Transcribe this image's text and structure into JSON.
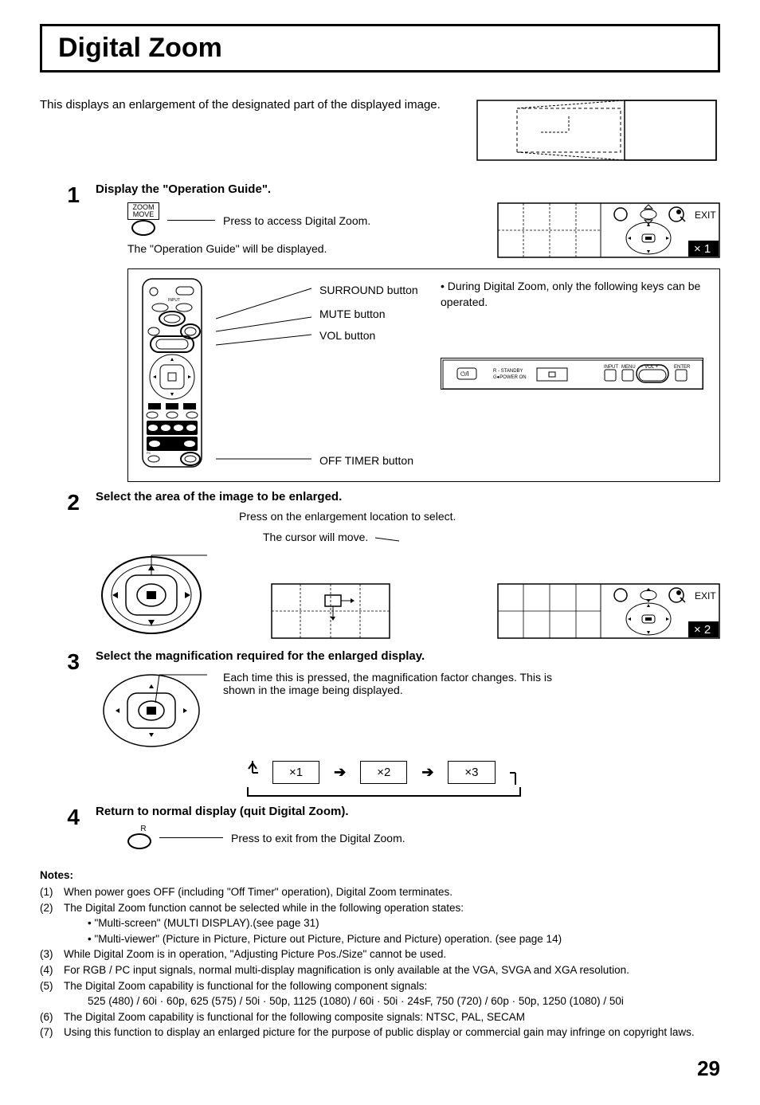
{
  "page": {
    "title": "Digital Zoom",
    "intro": "This displays an enlargement of the designated part of the displayed image.",
    "page_number": "29"
  },
  "steps": {
    "s1": {
      "num": "1",
      "title": "Display the \"Operation Guide\".",
      "zoom_label_line1": "ZOOM",
      "zoom_label_line2": "MOVE",
      "press_text": "Press to access Digital Zoom.",
      "displayed_text": "The \"Operation Guide\" will be displayed.",
      "label_surround": "SURROUND button",
      "label_mute": "MUTE button",
      "label_vol": "VOL button",
      "label_offtimer": "OFF TIMER button",
      "note_text": "During Digital Zoom, only the following keys can be operated.",
      "osd_exit": "EXIT",
      "osd_mag": "× 1",
      "panel_labels": {
        "standby": "R - STANDBY",
        "power": "G●POWER ON",
        "input": "INPUT",
        "menu": "MENU",
        "vol": "−  VOL  +",
        "enter": "ENTER"
      }
    },
    "s2": {
      "num": "2",
      "title": "Select the area of the image to be enlarged.",
      "press_text": "Press on the enlargement location to select.",
      "cursor_text": "The cursor will move.",
      "osd_exit": "EXIT",
      "osd_mag": "× 2"
    },
    "s3": {
      "num": "3",
      "title": "Select the magnification required for the enlarged display.",
      "desc": "Each time this is pressed, the magnification factor changes. This is shown in the image being displayed.",
      "x1": "×1",
      "x2": "×2",
      "x3": "×3"
    },
    "s4": {
      "num": "4",
      "title": "Return to normal display (quit Digital Zoom).",
      "r_label": "R",
      "press_text": "Press to exit from the Digital Zoom."
    }
  },
  "notes": {
    "title": "Notes:",
    "items": [
      {
        "n": "(1)",
        "t": "When power goes OFF (including \"Off Timer\" operation), Digital Zoom terminates."
      },
      {
        "n": "(2)",
        "t": "The Digital Zoom function cannot be selected while in the following operation states:"
      },
      {
        "n": "",
        "t": "• \"Multi-screen\" (MULTI DISPLAY).(see page 31)",
        "sub": true
      },
      {
        "n": "",
        "t": "• \"Multi-viewer\" (Picture in Picture, Picture out Picture, Picture and Picture) operation. (see page 14)",
        "sub": true
      },
      {
        "n": "(3)",
        "t": "While Digital Zoom is in operation, \"Adjusting Picture Pos./Size\" cannot be used."
      },
      {
        "n": "(4)",
        "t": "For RGB / PC input signals, normal multi-display magnification is only available at the VGA, SVGA and XGA resolution."
      },
      {
        "n": "(5)",
        "t": "The Digital Zoom capability is functional for the following component signals:"
      },
      {
        "n": "",
        "t": "525 (480) / 60i · 60p, 625 (575) / 50i · 50p, 1125 (1080) / 60i · 50i · 24sF, 750 (720) / 60p · 50p, 1250 (1080) / 50i",
        "sub": true
      },
      {
        "n": "(6)",
        "t": "The Digital Zoom capability is functional for the following composite signals: NTSC, PAL, SECAM"
      },
      {
        "n": "(7)",
        "t": "Using this function to display an enlarged picture for the purpose of public display or commercial gain may infringe on copyright laws."
      }
    ]
  },
  "colors": {
    "bg": "#ffffff",
    "fg": "#000000",
    "osd_black": "#000000",
    "osd_white": "#ffffff"
  }
}
